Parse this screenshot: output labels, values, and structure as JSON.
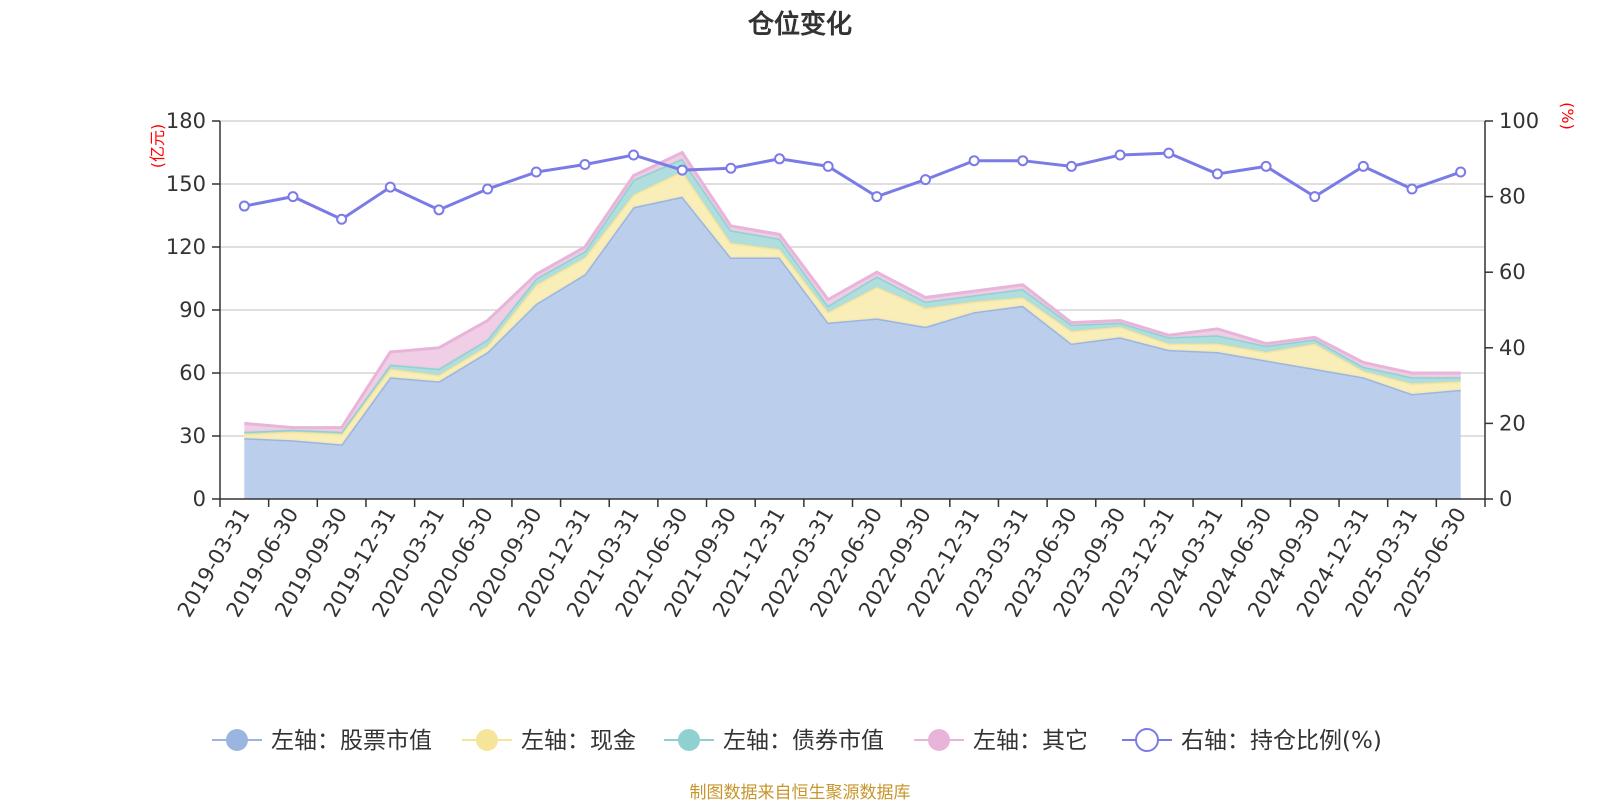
{
  "chart_data": {
    "type": "area",
    "title": "仓位变化",
    "left_axis_unit": "(亿元)",
    "right_axis_unit": "(%)",
    "x": [
      "2019-03-31",
      "2019-06-30",
      "2019-09-30",
      "2019-12-31",
      "2020-03-31",
      "2020-06-30",
      "2020-09-30",
      "2020-12-31",
      "2021-03-31",
      "2021-06-30",
      "2021-09-30",
      "2021-12-31",
      "2022-03-31",
      "2022-06-30",
      "2022-09-30",
      "2022-12-31",
      "2023-03-31",
      "2023-06-30",
      "2023-09-30",
      "2023-12-31",
      "2024-03-31",
      "2024-06-30",
      "2024-09-30",
      "2024-12-31",
      "2025-03-31",
      "2025-06-30"
    ],
    "y_left": {
      "min": 0,
      "max": 180,
      "ticks": [
        0,
        30,
        60,
        90,
        120,
        150,
        180
      ]
    },
    "y_right": {
      "min": 0,
      "max": 100,
      "ticks": [
        0,
        20,
        40,
        60,
        80,
        100
      ]
    },
    "stacked": true,
    "series": [
      {
        "name": "左轴：股票市值",
        "axis": "left",
        "color": "#9ab6e0",
        "fill": "#b7cbea",
        "values": [
          29,
          28,
          26,
          58,
          56,
          70,
          93,
          107,
          139,
          144,
          115,
          115,
          84,
          86,
          82,
          89,
          92,
          74,
          77,
          71,
          70,
          66,
          62,
          58,
          50,
          52
        ]
      },
      {
        "name": "左轴：现金",
        "axis": "left",
        "color": "#f5e49a",
        "fill": "#f9ecb4",
        "values": [
          2,
          4,
          5,
          4,
          3,
          3,
          9,
          8,
          6,
          12,
          7,
          4,
          5,
          15,
          9,
          5,
          4,
          6,
          5,
          3,
          4,
          4,
          12,
          3,
          5,
          4
        ]
      },
      {
        "name": "左轴：债券市值",
        "axis": "left",
        "color": "#8fd1d1",
        "fill": "#acdcdc",
        "values": [
          1,
          1,
          1,
          2,
          3,
          3,
          3,
          3,
          7,
          6,
          6,
          5,
          3,
          5,
          3,
          3,
          4,
          3,
          2,
          3,
          4,
          3,
          2,
          2,
          3,
          2
        ]
      },
      {
        "name": "左轴：其它",
        "axis": "left",
        "color": "#e8b4d9",
        "fill": "#efcbe4",
        "values": [
          4,
          1,
          2,
          6,
          10,
          9,
          2,
          2,
          2,
          3,
          2,
          2,
          3,
          2,
          2,
          2,
          2,
          1,
          1,
          1,
          3,
          1,
          1,
          2,
          2,
          2
        ]
      },
      {
        "name": "右轴：持仓比例(%)",
        "axis": "right",
        "color": "#7b7be8",
        "values": [
          77.5,
          80,
          74,
          82.5,
          76.5,
          82,
          86.5,
          88.5,
          91,
          87,
          87.5,
          90,
          88,
          80,
          84.5,
          89.5,
          89.5,
          88,
          91,
          91.5,
          86,
          88,
          80,
          88,
          82,
          86.5
        ]
      }
    ],
    "legend_position": "bottom",
    "grid": true
  },
  "footer": {
    "source": "制图数据来自恒生聚源数据库",
    "source_color": "#c8962a"
  }
}
